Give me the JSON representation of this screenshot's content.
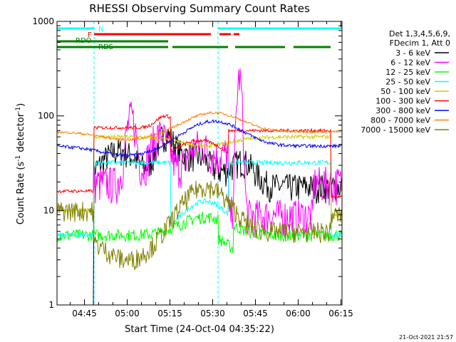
{
  "chart_data": {
    "type": "line",
    "title": "RHESSI Observing Summary Count Rates",
    "xlabel": "Start Time (24-Oct-04 04:35:22)",
    "ylabel_main": "Count Rate (s",
    "ylabel_sup1": "-1",
    "ylabel_mid": " detector",
    "ylabel_sup2": "-1",
    "ylabel_end": ")",
    "yscale": "log",
    "ylim": [
      1,
      1000
    ],
    "xlim_minutes": [
      0,
      100
    ],
    "x_ticks": [
      {
        "label": "04:45",
        "min": 9.63
      },
      {
        "label": "05:00",
        "min": 24.63
      },
      {
        "label": "05:15",
        "min": 39.63
      },
      {
        "label": "05:30",
        "min": 54.63
      },
      {
        "label": "05:45",
        "min": 69.63
      },
      {
        "label": "06:00",
        "min": 84.63
      },
      {
        "label": "06:15",
        "min": 99.63
      }
    ],
    "y_ticks": [
      {
        "label": "1",
        "value": 1
      },
      {
        "label": "10",
        "value": 10
      },
      {
        "label": "100",
        "value": 100
      },
      {
        "label": "1000",
        "value": 1000
      }
    ],
    "legend_header": [
      "Det 1,3,4,5,6,9,",
      "FDecim 1, Att 0"
    ],
    "legend_position": "right",
    "series": [
      {
        "name": "3 - 6 keV",
        "color": "#000000"
      },
      {
        "name": "6 - 12 keV",
        "color": "#ff00ff"
      },
      {
        "name": "12 - 25 keV",
        "color": "#00ff00"
      },
      {
        "name": "25 - 50 keV",
        "color": "#00ffff"
      },
      {
        "name": "50 - 100 keV",
        "color": "#cccc00"
      },
      {
        "name": "100 - 300 keV",
        "color": "#ff0000"
      },
      {
        "name": "300 - 800 keV",
        "color": "#0000ff"
      },
      {
        "name": "800 - 7000 keV",
        "color": "#ff8000"
      },
      {
        "name": "7000 - 15000 keV",
        "color": "#808000"
      }
    ],
    "annotations": {
      "night_label": "N",
      "flare_label": "F",
      "rdo_label": "RDO",
      "rds_label": "RDS"
    },
    "night_intervals_min": [
      [
        0,
        13
      ],
      [
        56.5,
        100
      ]
    ],
    "flare_intervals_min": [
      [
        13,
        54
      ],
      [
        57,
        61
      ],
      [
        62,
        64
      ]
    ],
    "rdo_interval_min": [
      0,
      39
    ],
    "rds_intervals_min": [
      [
        0,
        39
      ],
      [
        40.5,
        60
      ],
      [
        62.5,
        80
      ],
      [
        83,
        96
      ]
    ]
  },
  "footer_timestamp": "21-Oct-2021 21:57"
}
